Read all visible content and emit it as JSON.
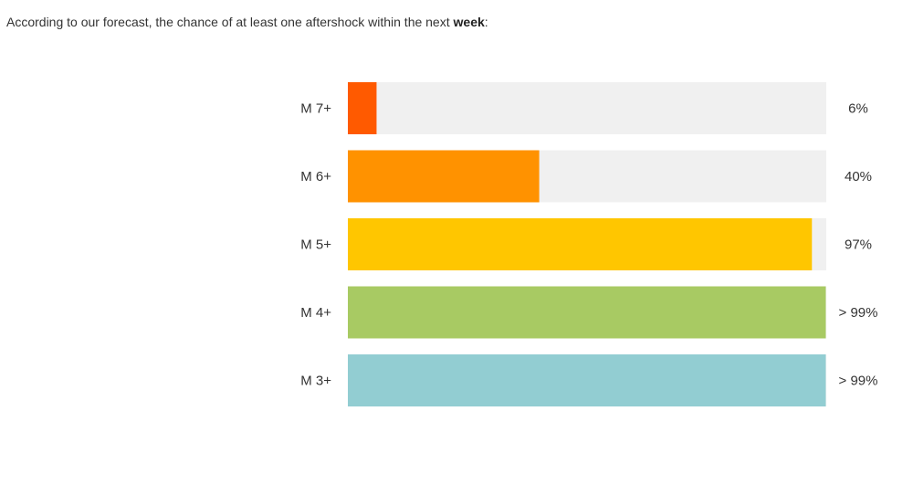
{
  "intro": {
    "text_prefix": "According to our forecast, the chance of at least one aftershock within the next ",
    "text_bold": "week",
    "text_suffix": ":"
  },
  "chart_data": {
    "type": "bar",
    "orientation": "horizontal",
    "categories": [
      "M 7+",
      "M 6+",
      "M 5+",
      "M 4+",
      "M 3+"
    ],
    "values": [
      6,
      40,
      97,
      99.9,
      99.9
    ],
    "value_labels": [
      "6%",
      "40%",
      "97%",
      "> 99%",
      "> 99%"
    ],
    "colors": [
      "#ff5a00",
      "#ff9200",
      "#ffc600",
      "#a8ca63",
      "#92cdd2"
    ],
    "track_color": "#f0f0f0",
    "xlim": [
      0,
      100
    ],
    "grid": false,
    "legend": "none"
  }
}
